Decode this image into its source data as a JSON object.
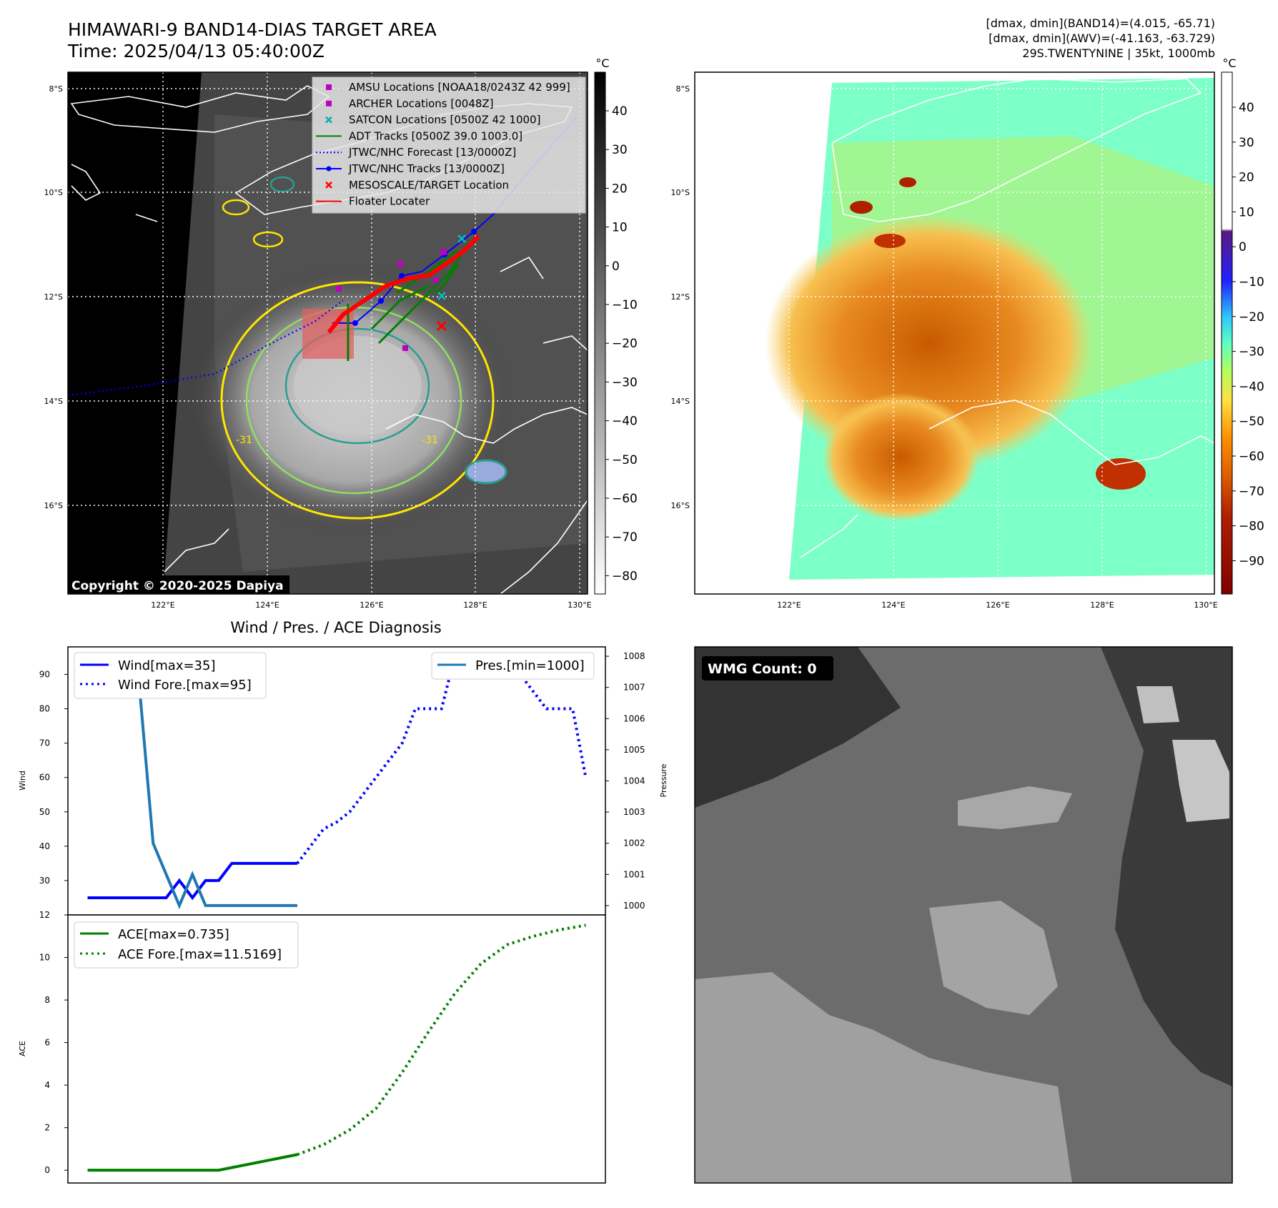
{
  "header": {
    "title_line1": "HIMAWARI-9 BAND14-DIAS TARGET AREA",
    "title_line2": "Time: 2025/04/13 05:40:00Z",
    "info_line1": "[dmax, dmin](BAND14)=(4.015, -65.71)",
    "info_line2": "[dmax, dmin](AWV)=(-41.163, -63.729)",
    "info_line3": "29S.TWENTYNINE | 35kt, 1000mb"
  },
  "maps": {
    "lat_labels": [
      "8°S",
      "10°S",
      "12°S",
      "14°S",
      "16°S"
    ],
    "lon_labels": [
      "122°E",
      "124°E",
      "126°E",
      "128°E",
      "130°E"
    ],
    "copyright": "Copyright © 2020-2025 Dapiya",
    "contour_label": "-31",
    "ir_cbar": {
      "unit": "°C",
      "ticks": [
        "40",
        "30",
        "20",
        "10",
        "0",
        "−10",
        "−20",
        "−30",
        "−40",
        "−50",
        "−60",
        "−70",
        "−80"
      ]
    },
    "awv_cbar": {
      "unit": "°C",
      "ticks": [
        "40",
        "30",
        "20",
        "10",
        "0",
        "−10",
        "−20",
        "−30",
        "−40",
        "−50",
        "−60",
        "−70",
        "−80",
        "−90"
      ]
    },
    "legend": [
      {
        "label": "AMSU Locations [NOAA18/0243Z 42 999]",
        "marker": "square",
        "color": "#c000c0"
      },
      {
        "label": "ARCHER Locations [0048Z]",
        "marker": "square",
        "color": "#c000c0"
      },
      {
        "label": "SATCON Locations [0500Z 42 1000]",
        "marker": "x",
        "color": "#00b0b0"
      },
      {
        "label": "ADT Tracks [0500Z 39.0 1003.0]",
        "marker": "line",
        "color": "#008000"
      },
      {
        "label": "JTWC/NHC Forecast [13/0000Z]",
        "marker": "dotted",
        "color": "#0000ff"
      },
      {
        "label": "JTWC/NHC Tracks [13/0000Z]",
        "marker": "line-dot",
        "color": "#0000ff"
      },
      {
        "label": "MESOSCALE/TARGET Location",
        "marker": "x",
        "color": "#ff0000"
      },
      {
        "label": "Floater Locater",
        "marker": "line",
        "color": "#ff0000"
      }
    ]
  },
  "wmg": {
    "label": "WMG Count: 0"
  },
  "chart_data": [
    {
      "type": "line",
      "title": "Wind / Pres. / ACE Diagnosis",
      "ylabel": "Wind",
      "ylabel_right": "Pressure",
      "ylim": [
        20,
        98
      ],
      "ylim_right": [
        999.7,
        1008.3
      ],
      "yticks": [
        30,
        40,
        50,
        60,
        70,
        80,
        90
      ],
      "yticks_right": [
        1000,
        1001,
        1002,
        1003,
        1004,
        1005,
        1006,
        1007,
        1008
      ],
      "legend_left": [
        "Wind[max=35]",
        "Wind Fore.[max=95]"
      ],
      "legend_right": [
        "Pres.[min=1000]"
      ],
      "series": [
        {
          "name": "Wind[max=35]",
          "style": "solid",
          "color": "#0000ff",
          "x": [
            0,
            1,
            2,
            3,
            4,
            5,
            6,
            7,
            8,
            9,
            10,
            11,
            12,
            13,
            14,
            15,
            16
          ],
          "values": [
            25,
            25,
            25,
            25,
            25,
            25,
            25,
            30,
            25,
            30,
            30,
            35,
            35,
            35,
            35,
            35,
            35
          ]
        },
        {
          "name": "Wind Fore.[max=95]",
          "style": "dotted",
          "color": "#0000ff",
          "x": [
            16,
            17,
            18,
            19,
            20,
            21,
            22,
            23,
            24,
            25,
            26,
            27,
            28,
            29,
            30,
            31,
            32,
            33,
            34,
            35,
            36,
            37,
            38
          ],
          "values": [
            35,
            40,
            45,
            47,
            50,
            55,
            60,
            65,
            70,
            80,
            80,
            80,
            95,
            95,
            95,
            95,
            95,
            90,
            85,
            80,
            80,
            80,
            60
          ]
        },
        {
          "name": "Pres.[min=1000]",
          "style": "solid",
          "color": "#1f77b4",
          "axis": "right",
          "x": [
            0,
            1,
            2,
            3,
            4,
            5,
            6,
            7,
            8,
            9,
            10,
            11,
            12,
            13,
            14,
            15,
            16
          ],
          "values": [
            1008,
            1007.4,
            1007.4,
            1006.8,
            1006.8,
            1002,
            1001,
            1000,
            1001,
            1000,
            1000,
            1000,
            1000,
            1000,
            1000,
            1000,
            1000
          ]
        }
      ]
    },
    {
      "type": "line",
      "ylabel": "ACE",
      "ylim": [
        -0.6,
        12
      ],
      "yticks": [
        0,
        2,
        4,
        6,
        8,
        10,
        12
      ],
      "legend": [
        "ACE[max=0.735]",
        "ACE Fore.[max=11.5169]"
      ],
      "series": [
        {
          "name": "ACE[max=0.735]",
          "style": "solid",
          "color": "#008000",
          "x": [
            0,
            10,
            16
          ],
          "values": [
            0,
            0,
            0.735
          ]
        },
        {
          "name": "ACE Fore.[max=11.5169]",
          "style": "dotted",
          "color": "#008000",
          "x": [
            16,
            18,
            20,
            22,
            24,
            26,
            28,
            30,
            32,
            34,
            36,
            38
          ],
          "values": [
            0.735,
            1.2,
            1.9,
            2.9,
            4.6,
            6.5,
            8.3,
            9.7,
            10.6,
            11.0,
            11.3,
            11.5169
          ]
        }
      ]
    }
  ]
}
